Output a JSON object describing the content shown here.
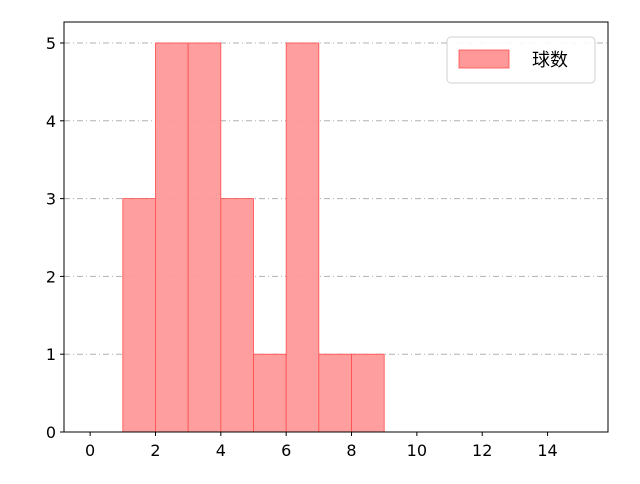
{
  "chart_data": {
    "type": "bar",
    "histogram": true,
    "bins": [
      [
        1,
        2
      ],
      [
        2,
        3
      ],
      [
        3,
        4
      ],
      [
        4,
        5
      ],
      [
        5,
        6
      ],
      [
        6,
        7
      ],
      [
        7,
        8
      ],
      [
        8,
        9
      ]
    ],
    "values": [
      3,
      5,
      5,
      3,
      1,
      5,
      1,
      1
    ],
    "series": [
      {
        "name": "球数",
        "values": [
          3,
          5,
          5,
          3,
          1,
          5,
          1,
          1
        ]
      }
    ],
    "xlim": [
      -0.8,
      15.85
    ],
    "ylim": [
      0,
      5.27
    ],
    "xticks": [
      "0",
      "2",
      "4",
      "6",
      "8",
      "10",
      "12",
      "14"
    ],
    "yticks": [
      "0",
      "1",
      "2",
      "3",
      "4",
      "5"
    ],
    "grid": {
      "y": true,
      "x": false,
      "style": "dash-dot"
    },
    "legend": "top-right",
    "colors": {
      "fill": "#ff9999",
      "edge": "#ff4d4d",
      "grid": "#b0b0b0"
    }
  }
}
